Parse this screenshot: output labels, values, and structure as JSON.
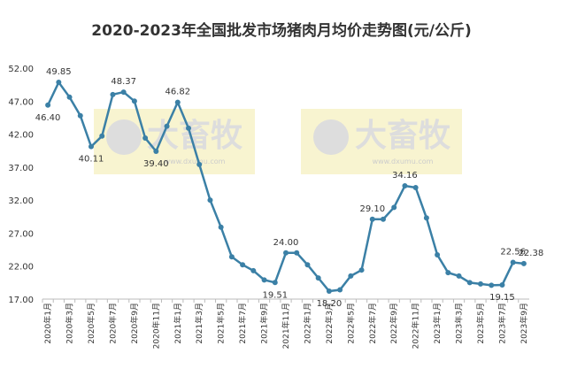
{
  "chart_data": {
    "type": "line",
    "title": "2020-2023年全国批发市场猪肉月均价走势图(元/公斤)",
    "watermark": "大畜牧",
    "watermark_url": "www.dxumu.com",
    "categories": [
      "2020年1月",
      null,
      "2020年3月",
      null,
      "2020年5月",
      null,
      "2020年7月",
      null,
      "2020年9月",
      null,
      "2020年11月",
      null,
      "2021年1月",
      null,
      "2021年3月",
      null,
      "2021年5月",
      null,
      "2021年7月",
      null,
      "2021年9月",
      null,
      "2021年11月",
      null,
      "2022年1月",
      null,
      "2022年3月",
      null,
      "2022年5月",
      null,
      "2022年7月",
      null,
      "2022年9月",
      null,
      "2022年11月",
      null,
      "2023年1月",
      null,
      "2023年3月",
      null,
      "2023年5月",
      null,
      "2023年7月",
      null,
      "2023年9月"
    ],
    "series": [
      {
        "name": "猪肉月均价",
        "color": "#3b80a6",
        "values": [
          46.4,
          49.85,
          47.6,
          44.8,
          40.11,
          41.7,
          48.0,
          48.37,
          47.0,
          41.4,
          39.4,
          43.2,
          46.82,
          42.9,
          37.4,
          32.0,
          27.9,
          23.4,
          22.2,
          21.3,
          19.9,
          19.51,
          24.0,
          24.0,
          22.2,
          20.2,
          18.2,
          18.4,
          20.5,
          21.4,
          29.1,
          29.1,
          30.9,
          34.16,
          33.9,
          29.3,
          23.7,
          21.0,
          20.5,
          19.5,
          19.3,
          19.1,
          19.15,
          22.56,
          22.38
        ],
        "value_labels": [
          "46.40",
          "49.85",
          null,
          null,
          "40.11",
          null,
          null,
          "48.37",
          null,
          null,
          "39.40",
          null,
          "46.82",
          null,
          null,
          null,
          null,
          null,
          null,
          null,
          null,
          "19.51",
          "24.00",
          null,
          null,
          null,
          "18.20",
          null,
          null,
          null,
          "29.10",
          null,
          null,
          "34.16",
          null,
          null,
          null,
          null,
          null,
          null,
          null,
          null,
          "19.15",
          "22.56",
          "22.38"
        ]
      }
    ],
    "ylim": [
      17,
      52
    ],
    "yticks": [
      {
        "value": 17,
        "label": "17.00"
      },
      {
        "value": 22,
        "label": "22.00"
      },
      {
        "value": 27,
        "label": "27.00"
      },
      {
        "value": 32,
        "label": "32.00"
      },
      {
        "value": 37,
        "label": "37.00"
      },
      {
        "value": 42,
        "label": "42.00"
      },
      {
        "value": 47,
        "label": "47.00"
      },
      {
        "value": 52,
        "label": "52.00"
      }
    ],
    "grid": false
  }
}
